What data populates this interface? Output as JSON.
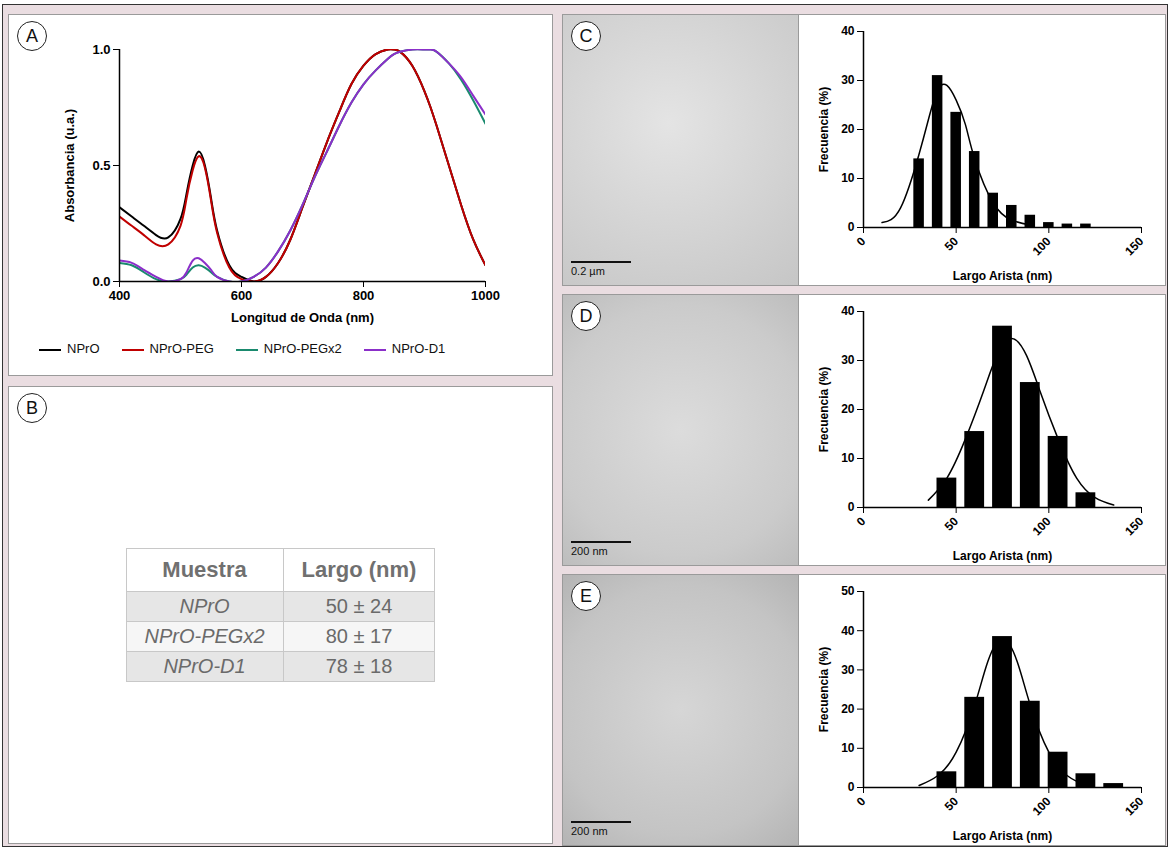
{
  "chart_data": [
    {
      "panel": "A",
      "type": "line",
      "x_label": "Longitud de Onda (nm)",
      "y_label": "Absorbancia (u.a.)",
      "x": [
        400,
        420,
        440,
        460,
        480,
        500,
        510,
        520,
        530,
        540,
        550,
        560,
        580,
        600,
        620,
        640,
        660,
        680,
        700,
        720,
        740,
        760,
        780,
        800,
        820,
        840,
        850,
        860,
        880,
        900,
        910,
        920,
        940,
        960,
        980,
        1000
      ],
      "series": [
        {
          "name": "NPrO",
          "color": "#000000",
          "values": [
            0.32,
            0.28,
            0.24,
            0.2,
            0.19,
            0.27,
            0.38,
            0.5,
            0.56,
            0.5,
            0.36,
            0.22,
            0.07,
            0.02,
            0.0,
            0.02,
            0.08,
            0.18,
            0.32,
            0.46,
            0.6,
            0.73,
            0.85,
            0.93,
            0.98,
            1.0,
            1.0,
            0.99,
            0.93,
            0.82,
            0.75,
            0.67,
            0.5,
            0.33,
            0.18,
            0.07
          ]
        },
        {
          "name": "NPrO-PEG",
          "color": "#c00000",
          "values": [
            0.28,
            0.24,
            0.2,
            0.16,
            0.16,
            0.24,
            0.36,
            0.48,
            0.54,
            0.49,
            0.35,
            0.21,
            0.06,
            0.01,
            0.0,
            0.02,
            0.08,
            0.18,
            0.32,
            0.46,
            0.6,
            0.73,
            0.85,
            0.93,
            0.98,
            1.0,
            1.0,
            0.99,
            0.93,
            0.82,
            0.75,
            0.67,
            0.5,
            0.33,
            0.18,
            0.07
          ]
        },
        {
          "name": "NPrO-PEGx2",
          "color": "#1a8a6e",
          "values": [
            0.08,
            0.07,
            0.04,
            0.01,
            0.0,
            0.01,
            0.03,
            0.06,
            0.07,
            0.06,
            0.04,
            0.02,
            0.0,
            0.0,
            0.02,
            0.06,
            0.13,
            0.22,
            0.33,
            0.45,
            0.56,
            0.67,
            0.77,
            0.85,
            0.91,
            0.96,
            0.98,
            0.99,
            1.0,
            1.0,
            1.0,
            0.99,
            0.94,
            0.87,
            0.78,
            0.68
          ]
        },
        {
          "name": "NPrO-D1",
          "color": "#8b2fc9",
          "values": [
            0.09,
            0.08,
            0.05,
            0.02,
            0.0,
            0.01,
            0.04,
            0.09,
            0.1,
            0.08,
            0.05,
            0.02,
            0.0,
            0.0,
            0.02,
            0.06,
            0.13,
            0.22,
            0.33,
            0.45,
            0.56,
            0.67,
            0.77,
            0.85,
            0.91,
            0.96,
            0.98,
            0.99,
            1.0,
            1.0,
            1.0,
            0.99,
            0.94,
            0.88,
            0.8,
            0.72
          ]
        }
      ],
      "xlim": [
        400,
        1000
      ],
      "xticks": [
        400,
        600,
        800,
        1000
      ],
      "ylim": [
        0,
        1
      ],
      "yticks": [
        {
          "value": 0,
          "label": "0.0"
        },
        {
          "value": 0.5,
          "label": "0.5"
        },
        {
          "value": 1,
          "label": "1.0"
        }
      ],
      "legend": "bottom"
    },
    {
      "panel": "C",
      "type": "histogram",
      "x_label": "Largo Arista (nm)",
      "y_label": "Frecuencia (%)",
      "color": "#000000",
      "bins": [
        25,
        35,
        45,
        55,
        65,
        75,
        85,
        95,
        105,
        115,
        125
      ],
      "values": [
        14,
        31,
        23.5,
        15.5,
        7,
        4.5,
        2.5,
        1,
        0.7,
        0.7
      ],
      "fit": {
        "x": [
          10,
          20,
          30,
          35,
          40,
          45,
          50,
          55,
          60,
          70,
          80,
          90
        ],
        "values": [
          1,
          4,
          15,
          22,
          28,
          29,
          26,
          21,
          14,
          5,
          1.5,
          0.5
        ]
      },
      "xlim": [
        0,
        150
      ],
      "xticks": [
        0,
        50,
        100,
        150
      ],
      "ylim": [
        0,
        40
      ],
      "yticks": [
        0,
        10,
        20,
        30,
        40
      ]
    },
    {
      "panel": "D",
      "type": "histogram",
      "x_label": "Largo Arista (nm)",
      "y_label": "Frecuencia (%)",
      "color": "#000000",
      "bins": [
        37.5,
        52.5,
        67.5,
        82.5,
        97.5,
        112.5,
        127.5
      ],
      "values": [
        6,
        15.5,
        37,
        25.5,
        14.5,
        3
      ],
      "fit": {
        "x": [
          35,
          45,
          55,
          65,
          72,
          80,
          88,
          95,
          105,
          115,
          125,
          135
        ],
        "values": [
          1.5,
          6,
          14,
          24,
          31,
          34.5,
          31,
          24,
          14,
          6,
          2,
          0.5
        ]
      },
      "xlim": [
        0,
        150
      ],
      "xticks": [
        0,
        50,
        100,
        150
      ],
      "ylim": [
        0,
        40
      ],
      "yticks": [
        0,
        10,
        20,
        30,
        40
      ]
    },
    {
      "panel": "E",
      "type": "histogram",
      "x_label": "Largo Arista (nm)",
      "y_label": "Frecuencia (%)",
      "color": "#000000",
      "bins": [
        37.5,
        52.5,
        67.5,
        82.5,
        97.5,
        112.5,
        127.5,
        142.5
      ],
      "values": [
        4,
        23,
        38.5,
        22,
        9,
        3.5,
        1
      ],
      "fit": {
        "x": [
          30,
          40,
          50,
          60,
          67,
          75,
          83,
          90,
          100,
          110,
          120
        ],
        "values": [
          0.5,
          3,
          9,
          21,
          32,
          38,
          32,
          21,
          9,
          3,
          0.5
        ]
      },
      "xlim": [
        0,
        150
      ],
      "xticks": [
        0,
        50,
        100,
        150
      ],
      "ylim": [
        0,
        50
      ],
      "yticks": [
        0,
        10,
        20,
        30,
        40,
        50
      ]
    }
  ],
  "table": {
    "panel": "B",
    "header": [
      "Muestra",
      "Largo (nm)"
    ],
    "rows": [
      [
        "NPrO",
        "50 ± 24"
      ],
      [
        "NPrO-PEGx2",
        "80 ± 17"
      ],
      [
        "NPrO-D1",
        "78 ± 18"
      ]
    ]
  },
  "images": [
    {
      "panel": "C",
      "scale_bar": "0.2 µm"
    },
    {
      "panel": "D",
      "scale_bar": "200 nm"
    },
    {
      "panel": "E",
      "scale_bar": "200 nm"
    }
  ]
}
